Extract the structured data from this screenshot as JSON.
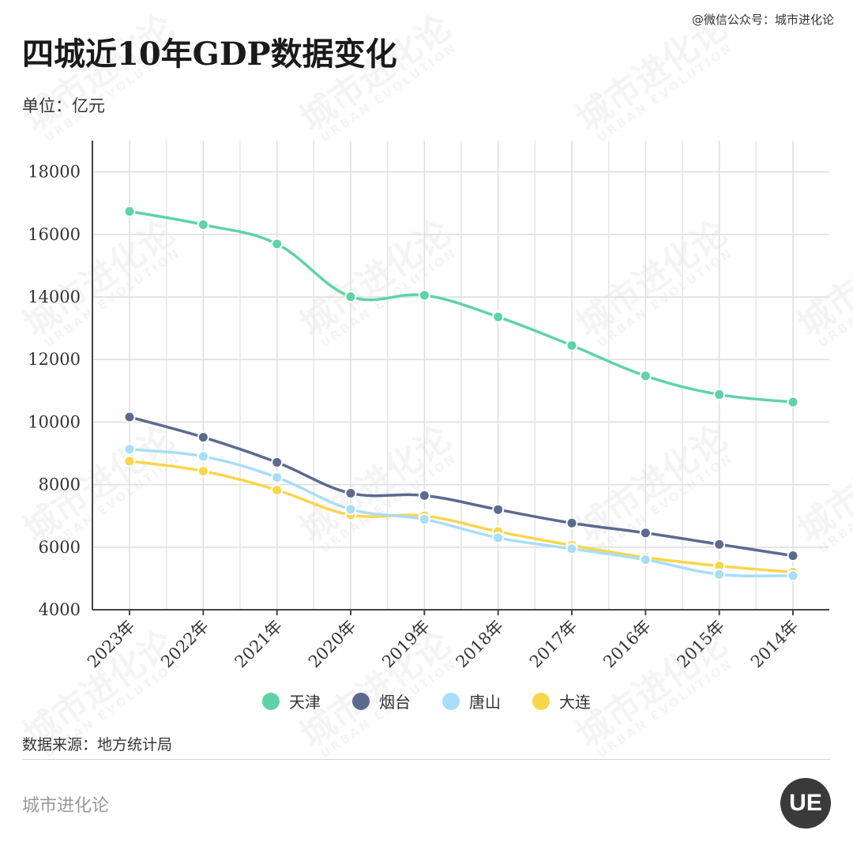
{
  "header": {
    "credit": "@微信公众号：城市进化论",
    "title": "四城近10年GDP数据变化",
    "unit": "单位：亿元"
  },
  "footer": {
    "source": "数据来源：地方统计局",
    "brand": "城市进化论",
    "logo_text": "UE"
  },
  "watermark": {
    "text": "城市进化论",
    "subtext": "URBAN EVOLUTION"
  },
  "chart_data": {
    "type": "line",
    "title": "四城近10年GDP数据变化",
    "xlabel": "",
    "ylabel": "单位：亿元",
    "categories": [
      "2023年",
      "2022年",
      "2021年",
      "2020年",
      "2019年",
      "2018年",
      "2017年",
      "2016年",
      "2015年",
      "2014年"
    ],
    "ylim": [
      4000,
      19000
    ],
    "yticks": [
      4000,
      6000,
      8000,
      10000,
      12000,
      14000,
      16000,
      18000
    ],
    "grid": true,
    "legend_position": "bottom",
    "series": [
      {
        "name": "天津",
        "color": "#5fd3a6",
        "values": [
          16737,
          16311,
          15695,
          14008,
          14055,
          13363,
          12451,
          11477,
          10880,
          10640
        ]
      },
      {
        "name": "烟台",
        "color": "#5b6b8f",
        "values": [
          10162,
          9516,
          8712,
          7726,
          7653,
          7202,
          6771,
          6456,
          6091,
          5726
        ]
      },
      {
        "name": "唐山",
        "color": "#a8def7",
        "values": [
          9133,
          8900,
          8231,
          7211,
          6891,
          6300,
          5950,
          5600,
          5130,
          5090
        ]
      },
      {
        "name": "大连",
        "color": "#fad54b",
        "values": [
          8752,
          8431,
          7826,
          7030,
          7001,
          6500,
          6060,
          5670,
          5400,
          5200
        ]
      }
    ]
  }
}
